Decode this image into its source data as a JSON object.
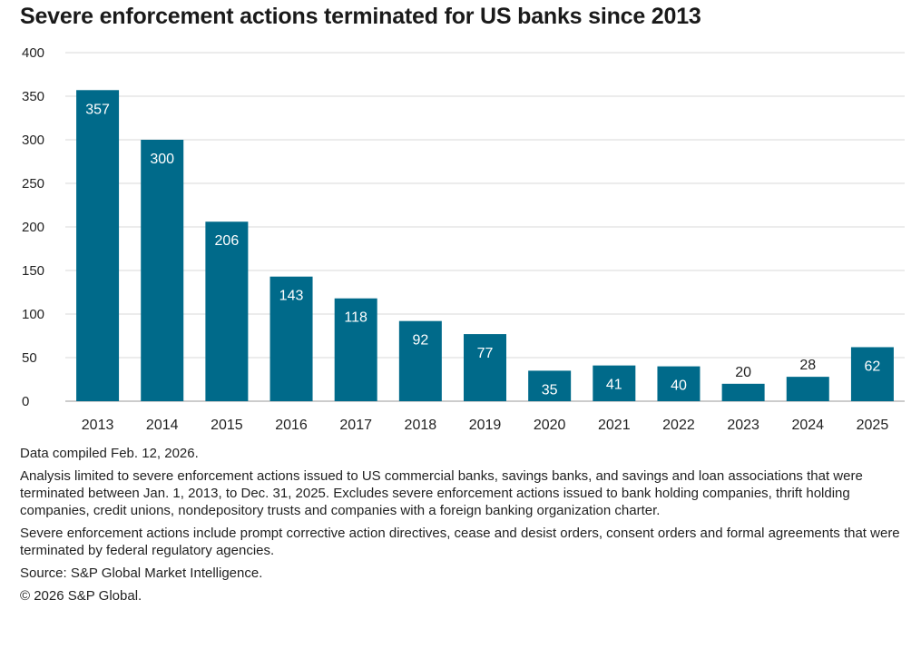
{
  "chart_data": {
    "type": "bar",
    "title": "Severe enforcement actions terminated for US banks since 2013",
    "xlabel": "",
    "ylabel": "",
    "categories": [
      "2013",
      "2014",
      "2015",
      "2016",
      "2017",
      "2018",
      "2019",
      "2020",
      "2021",
      "2022",
      "2023",
      "2024",
      "2025"
    ],
    "values": [
      357,
      300,
      206,
      143,
      118,
      92,
      77,
      35,
      41,
      40,
      20,
      28,
      62
    ],
    "ylim": [
      0,
      400
    ],
    "yticks": [
      0,
      50,
      100,
      150,
      200,
      250,
      300,
      350,
      400
    ],
    "grid": true,
    "data_labels": true,
    "legend": "none",
    "bar_color": "#006a8a"
  },
  "notes": {
    "compiled": "Data compiled Feb. 12, 2026.",
    "analysis": "Analysis limited to severe enforcement actions issued to US commercial banks, savings banks, and savings and loan associations that were terminated between Jan. 1, 2013, to Dec. 31, 2025. Excludes severe enforcement actions issued to bank holding companies, thrift holding companies, credit unions, nondepository trusts and companies with a foreign banking organization charter.",
    "definition": "Severe enforcement actions include prompt corrective action directives, cease and desist orders, consent orders and formal agreements that were terminated by federal regulatory agencies.",
    "source": "Source: S&P Global Market Intelligence.",
    "copyright": "© 2026 S&P Global."
  }
}
